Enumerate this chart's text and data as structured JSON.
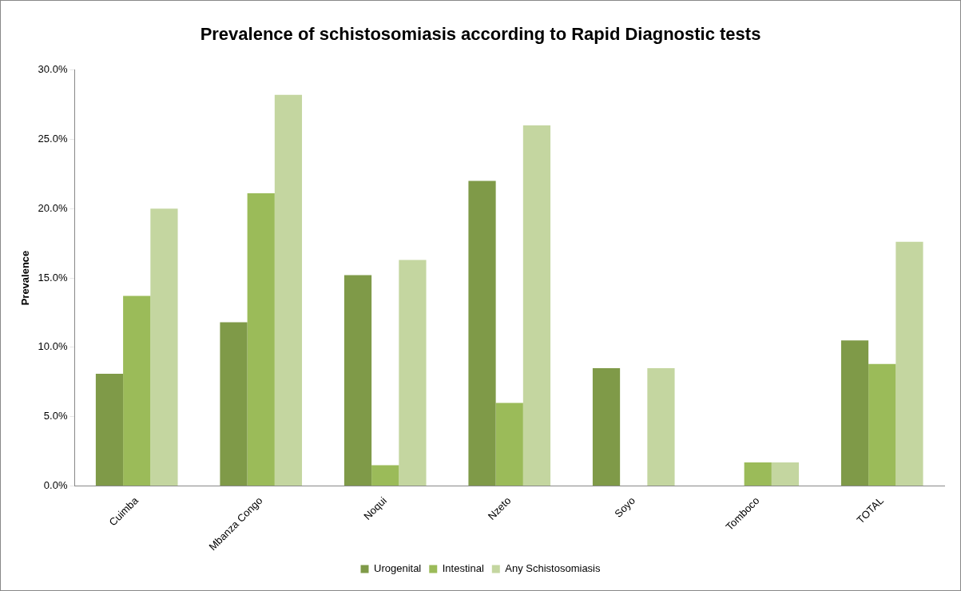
{
  "chart_data": {
    "type": "bar",
    "title": "Prevalence of schistosomiasis according to Rapid Diagnostic tests",
    "ylabel": "Prevalence",
    "categories": [
      "Cuimba",
      "Mbanza Congo",
      "Noqui",
      "Nzeto",
      "Soyo",
      "Tomboco",
      "TOTAL"
    ],
    "series": [
      {
        "name": "Urogenital",
        "color": "#7f9a48",
        "values": [
          8.1,
          11.8,
          15.2,
          22.0,
          8.5,
          0,
          10.5
        ]
      },
      {
        "name": "Intestinal",
        "color": "#9bbb59",
        "values": [
          13.7,
          21.1,
          1.5,
          6.0,
          0,
          1.7,
          8.8
        ]
      },
      {
        "name": "Any Schistosomiasis",
        "color": "#c4d6a0",
        "values": [
          20.0,
          28.2,
          16.3,
          26.0,
          8.5,
          1.7,
          17.6
        ]
      }
    ],
    "ylim": [
      0,
      30
    ],
    "yticks": [
      {
        "value": 0,
        "label": "0.0%"
      },
      {
        "value": 5,
        "label": "5.0%"
      },
      {
        "value": 10,
        "label": "10.0%"
      },
      {
        "value": 15,
        "label": "15.0%"
      },
      {
        "value": 20,
        "label": "20.0%"
      },
      {
        "value": 25,
        "label": "25.0%"
      },
      {
        "value": 30,
        "label": "30.0%"
      }
    ],
    "grid": false,
    "legend": "bottom"
  }
}
